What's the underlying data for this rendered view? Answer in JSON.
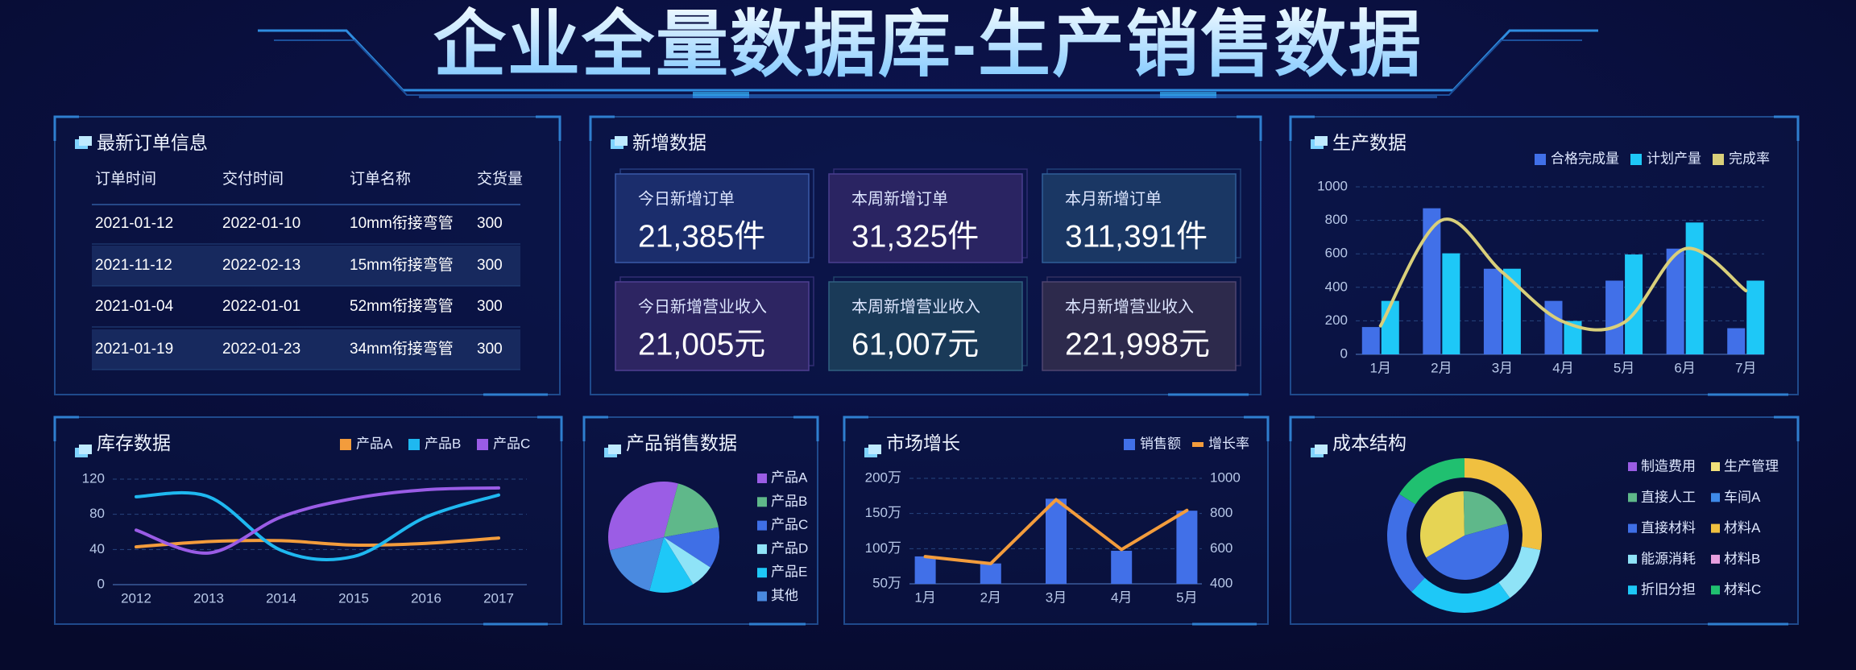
{
  "title": "企业全量数据库-生产销售数据",
  "orders": {
    "title": "最新订单信息",
    "columns": [
      "订单时间",
      "交付时间",
      "订单名称",
      "交货量"
    ],
    "rows": [
      [
        "2021-01-12",
        "2022-01-10",
        "10mm衔接弯管",
        "300"
      ],
      [
        "2021-11-12",
        "2022-02-13",
        "15mm衔接弯管",
        "300"
      ],
      [
        "2021-01-04",
        "2022-01-01",
        "52mm衔接弯管",
        "300"
      ],
      [
        "2021-01-19",
        "2022-01-23",
        "34mm衔接弯管",
        "300"
      ]
    ]
  },
  "new_data": {
    "title": "新增数据",
    "cards": [
      {
        "label": "今日新增订单",
        "value": "21,385件"
      },
      {
        "label": "本周新增订单",
        "value": "31,325件"
      },
      {
        "label": "本月新增订单",
        "value": "311,391件"
      },
      {
        "label": "今日新增营业收入",
        "value": "21,005元"
      },
      {
        "label": "本周新增营业收入",
        "value": "61,007元"
      },
      {
        "label": "本月新增营业收入",
        "value": "221,998元"
      }
    ]
  },
  "chart_data": [
    {
      "type": "bar",
      "title": "生产数据",
      "categories": [
        "1月",
        "2月",
        "3月",
        "4月",
        "5月",
        "6月",
        "7月"
      ],
      "series": [
        {
          "name": "合格完成量",
          "color": "#4170e8",
          "values": [
            163,
            872,
            511,
            319,
            440,
            631,
            156
          ]
        },
        {
          "name": "计划产量",
          "color": "#1ec8f7",
          "values": [
            319,
            603,
            511,
            199,
            596,
            787,
            440
          ]
        },
        {
          "name": "完成率",
          "type": "line",
          "color": "#d9cf7a",
          "values": [
            170,
            800,
            490,
            195,
            190,
            630,
            380
          ]
        }
      ],
      "ylim": [
        0,
        1000
      ],
      "yticks": [
        0,
        200,
        400,
        600,
        800,
        1000
      ],
      "grid": true,
      "smooth": true,
      "legend": "top-right"
    },
    {
      "type": "line",
      "title": "库存数据",
      "categories": [
        "2012",
        "2013",
        "2014",
        "2015",
        "2016",
        "2017"
      ],
      "series": [
        {
          "name": "产品A",
          "color": "#f39c3c",
          "values": [
            43,
            49,
            50,
            45,
            47,
            53
          ]
        },
        {
          "name": "产品B",
          "color": "#1fb8f0",
          "values": [
            100,
            100,
            39,
            32,
            77,
            102
          ]
        },
        {
          "name": "产品C",
          "color": "#9a5ce6",
          "values": [
            62,
            36,
            77,
            98,
            108,
            110
          ]
        }
      ],
      "ylim": [
        0,
        120
      ],
      "yticks": [
        0,
        40,
        80,
        120
      ],
      "grid": true,
      "smooth": true,
      "legend": "top-right"
    },
    {
      "type": "pie",
      "title": "产品销售数据",
      "categories": [
        "产品A",
        "产品B",
        "产品C",
        "产品D",
        "产品E",
        "其他"
      ],
      "values": [
        33,
        18,
        12,
        7,
        13,
        17
      ],
      "colors": [
        "#9b5de5",
        "#5fb88a",
        "#3f6fe6",
        "#8fe3f7",
        "#1ec8f7",
        "#4a8ae0"
      ],
      "legend": "right"
    },
    {
      "type": "bar",
      "title": "市场增长",
      "categories": [
        "1月",
        "2月",
        "3月",
        "4月",
        "5月"
      ],
      "series": [
        {
          "name": "销售额",
          "color": "#4170e8",
          "values": [
            89,
            79,
            171,
            97,
            154
          ]
        },
        {
          "name": "增长率",
          "type": "line",
          "axis": "y2",
          "color": "#f39c3c",
          "values": [
            555,
            515,
            879,
            595,
            818
          ]
        }
      ],
      "ylim": [
        50,
        200
      ],
      "yticks": [
        {
          "value": 50,
          "label": "50万"
        },
        {
          "value": 100,
          "label": "100万"
        },
        {
          "value": 150,
          "label": "150万"
        },
        {
          "value": 200,
          "label": "200万"
        }
      ],
      "y2lim": [
        400,
        1000
      ],
      "y2ticks": [
        400,
        600,
        800,
        1000
      ],
      "grid": true,
      "legend": "top-right"
    },
    {
      "type": "donut",
      "title": "成本结构",
      "legend_items": [
        {
          "name": "制造费用",
          "color": "#9b5de5"
        },
        {
          "name": "生产管理",
          "color": "#f2e07a"
        },
        {
          "name": "直接人工",
          "color": "#5fb88a"
        },
        {
          "name": "车间A",
          "color": "#3f8ae8"
        },
        {
          "name": "直接材料",
          "color": "#3f6fe6"
        },
        {
          "name": "材料A",
          "color": "#f0c040"
        },
        {
          "name": "能源消耗",
          "color": "#8fe3f7"
        },
        {
          "name": "材料B",
          "color": "#e8a0e0"
        },
        {
          "name": "折旧分担",
          "color": "#1ec8f7"
        },
        {
          "name": "材料C",
          "color": "#20c070"
        }
      ],
      "rings": [
        {
          "values": [
            33,
            21,
            46
          ],
          "colors": [
            "#e6d454",
            "#5fb88a",
            "#3f6fe6"
          ]
        },
        {
          "values": [
            28,
            12,
            22,
            22,
            16
          ],
          "colors": [
            "#f0c040",
            "#8fe3f7",
            "#1ec8f7",
            "#3f6fe6",
            "#20c070"
          ]
        }
      ]
    }
  ]
}
